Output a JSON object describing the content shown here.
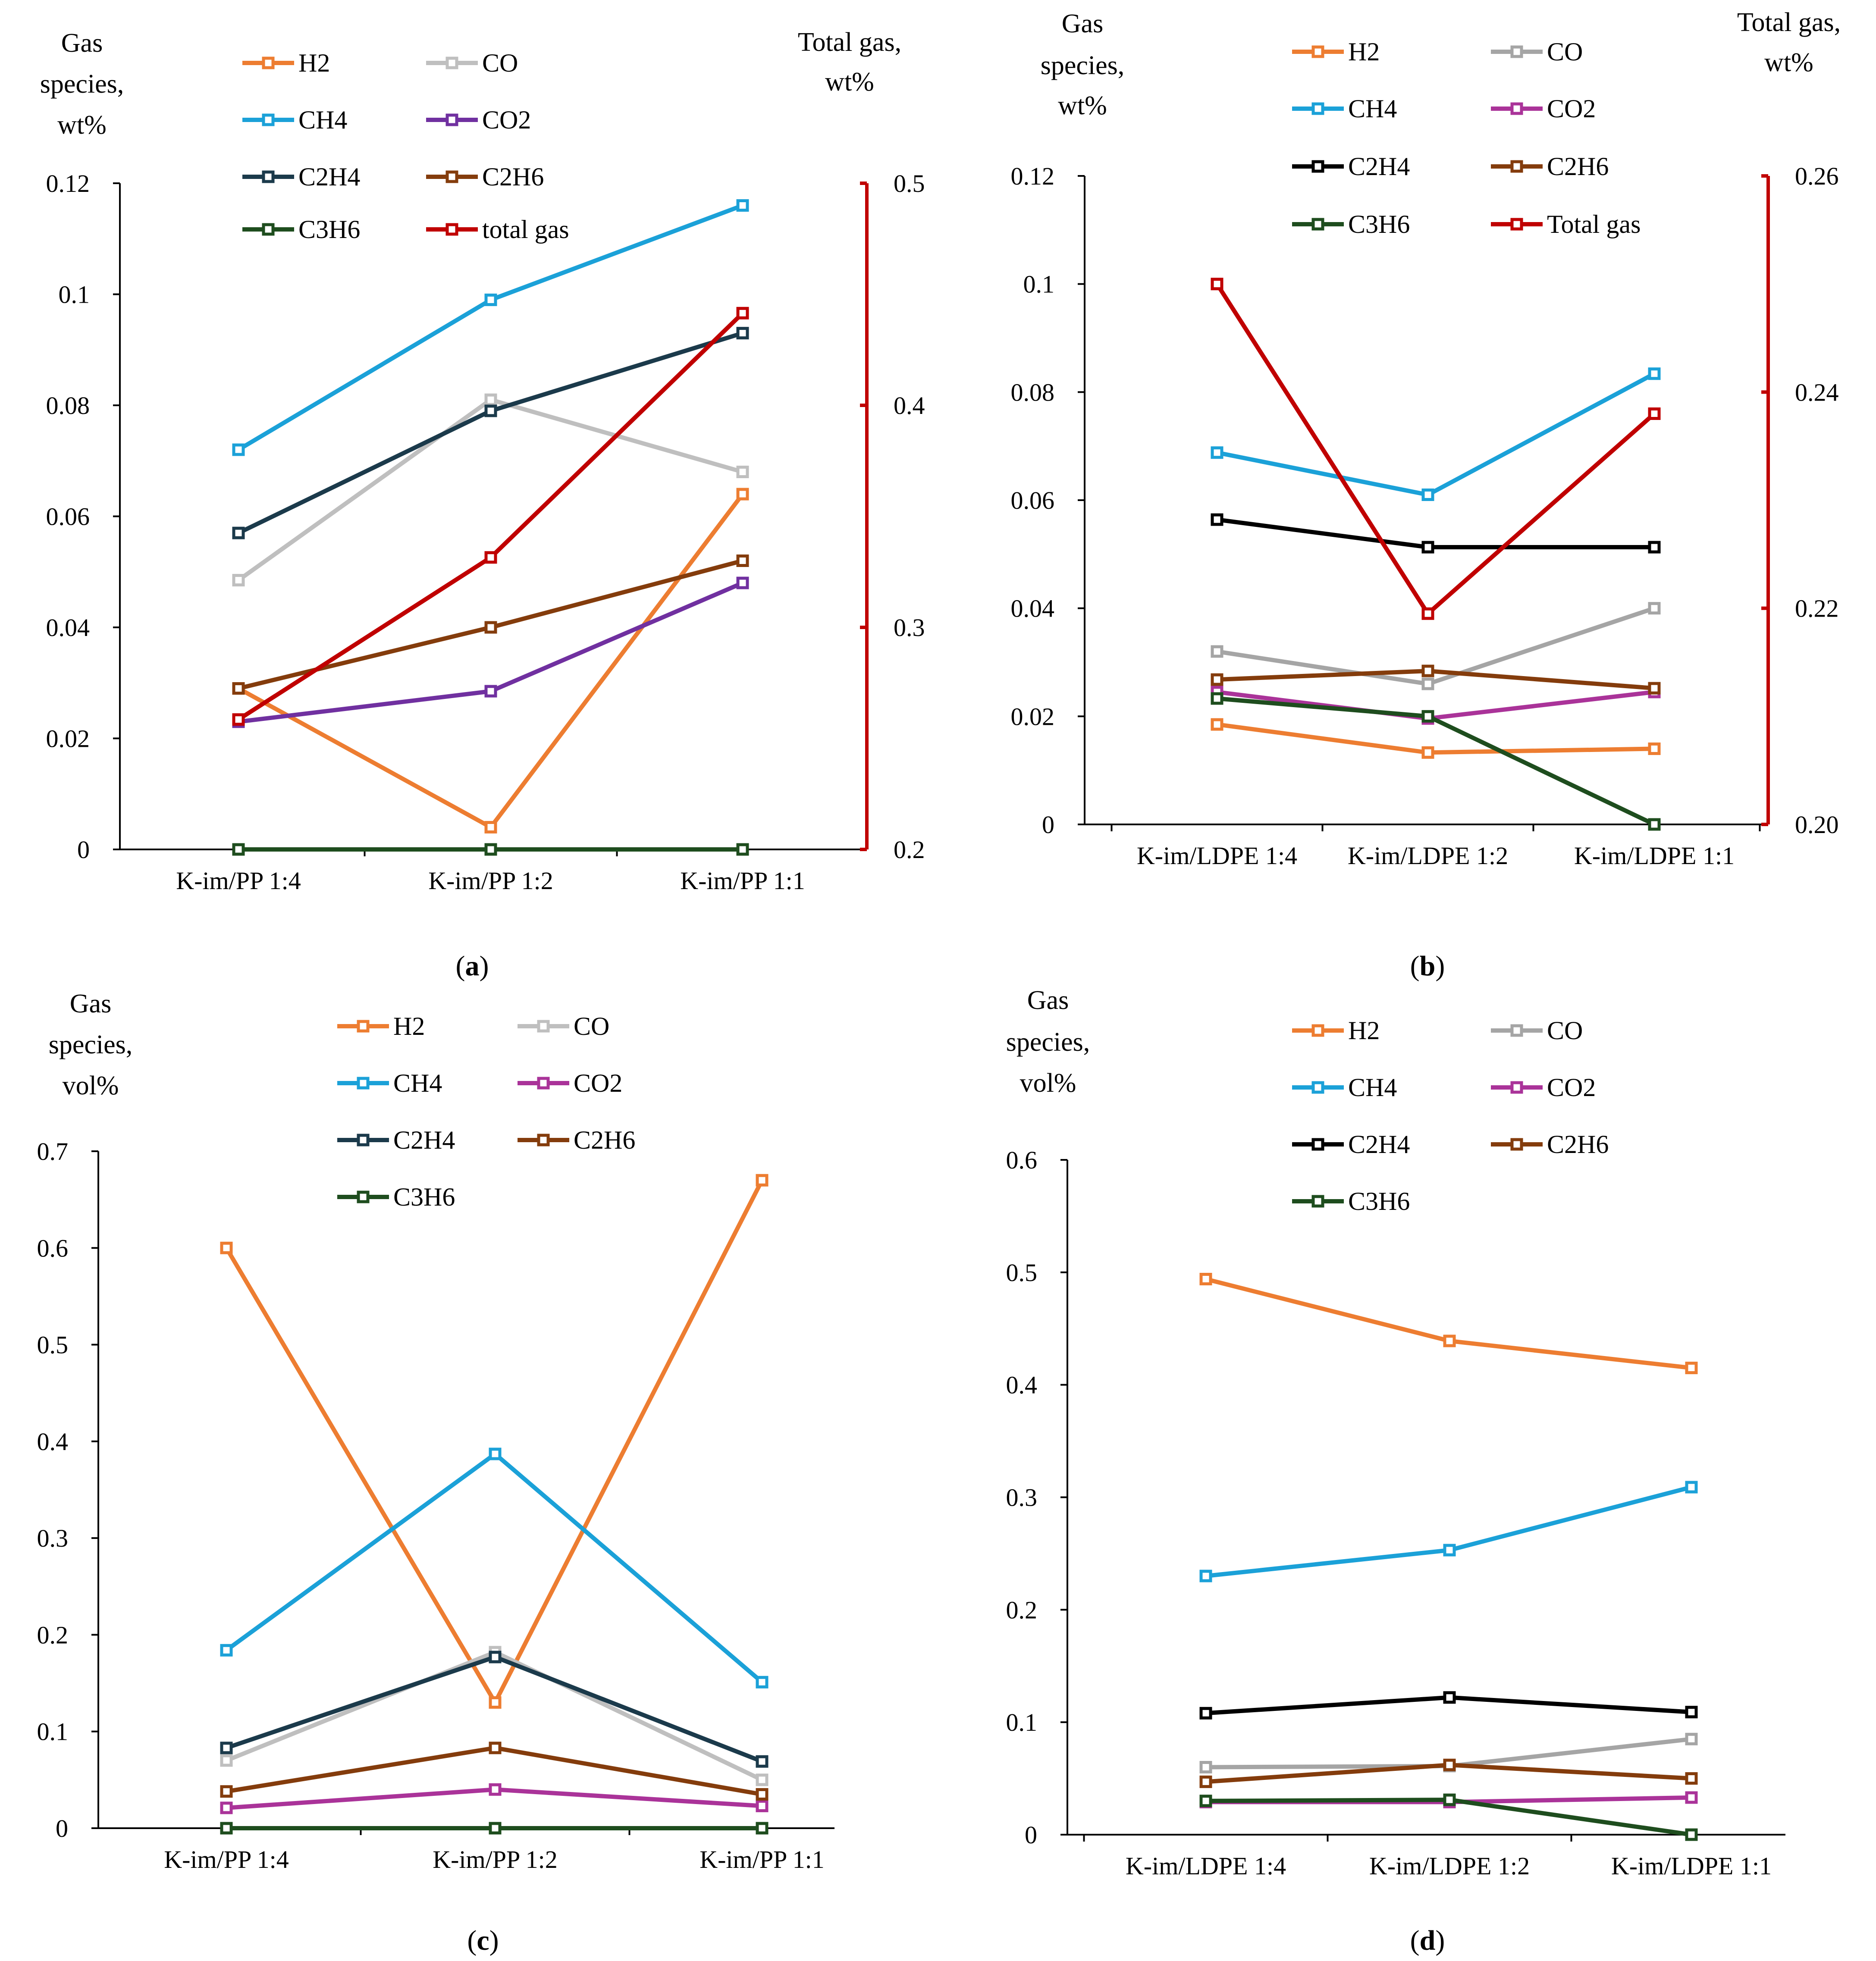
{
  "colors": {
    "H2": "#ED7D31",
    "CO_a": "#BFBFBF",
    "CO_b": "#A5A5A5",
    "CH4": "#1BA1D8",
    "CO2_a": "#7030A0",
    "CO2_b": "#AA3399",
    "C2H4_a": "#1B3A4B",
    "C2H4_b": "#000000",
    "C2H6": "#843C0C",
    "C3H6": "#1E4D1E",
    "total": "#C00000",
    "axis": "#000000"
  },
  "chart_data": [
    {
      "id": "a",
      "type": "line",
      "panel_label": "a",
      "ylabel_lines": [
        "Gas",
        "species,",
        "wt%"
      ],
      "y2label_lines": [
        "Total gas,",
        "wt%"
      ],
      "categories": [
        "K-im/PP 1:4",
        "K-im/PP 1:2",
        "K-im/PP 1:1"
      ],
      "ylim": [
        0,
        0.12
      ],
      "yticks": [
        0,
        0.02,
        0.04,
        0.06,
        0.08,
        0.1,
        0.12
      ],
      "ytick_labels": [
        "0",
        "0.02",
        "0.04",
        "0.06",
        "0.08",
        "0.1",
        "0.12"
      ],
      "y2lim": [
        0.2,
        0.5
      ],
      "y2ticks": [
        0.2,
        0.3,
        0.4,
        0.5
      ],
      "y2tick_labels": [
        "0.2",
        "0.3",
        "0.4",
        "0.5"
      ],
      "series": [
        {
          "name": "H2",
          "color_key": "H2",
          "values": [
            0.029,
            0.004,
            0.064
          ]
        },
        {
          "name": "CO",
          "color_key": "CO_a",
          "values": [
            0.0485,
            0.081,
            0.068
          ]
        },
        {
          "name": "CH4",
          "color_key": "CH4",
          "values": [
            0.072,
            0.099,
            0.116
          ]
        },
        {
          "name": "CO2",
          "color_key": "CO2_a",
          "values": [
            0.023,
            0.0285,
            0.048
          ]
        },
        {
          "name": "C2H4",
          "color_key": "C2H4_a",
          "values": [
            0.057,
            0.079,
            0.093
          ]
        },
        {
          "name": "C2H6",
          "color_key": "C2H6",
          "values": [
            0.029,
            0.04,
            0.052
          ]
        },
        {
          "name": "C3H6",
          "color_key": "C3H6",
          "values": [
            0,
            0,
            0
          ]
        },
        {
          "name": "total gas",
          "color_key": "total",
          "axis": "right",
          "values": [
            0.2585,
            0.3315,
            0.4415
          ]
        }
      ]
    },
    {
      "id": "b",
      "type": "line",
      "panel_label": "b",
      "ylabel_lines": [
        "Gas",
        "species,",
        "wt%"
      ],
      "y2label_lines": [
        "Total gas,",
        "wt%"
      ],
      "categories": [
        "K-im/LDPE 1:4",
        "K-im/LDPE 1:2",
        "K-im/LDPE 1:1"
      ],
      "ylim": [
        0,
        0.12
      ],
      "yticks": [
        0,
        0.02,
        0.04,
        0.06,
        0.08,
        0.1,
        0.12
      ],
      "ytick_labels": [
        "0",
        "0.02",
        "0.04",
        "0.06",
        "0.08",
        "0.1",
        "0.12"
      ],
      "y2lim": [
        0.2,
        0.26
      ],
      "y2ticks": [
        0.2,
        0.22,
        0.24,
        0.26
      ],
      "y2tick_labels": [
        "0.20",
        "0.22",
        "0.24",
        "0.26"
      ],
      "series": [
        {
          "name": "H2",
          "color_key": "H2",
          "values": [
            0.0185,
            0.0133,
            0.014
          ]
        },
        {
          "name": "CO",
          "color_key": "CO_b",
          "values": [
            0.032,
            0.026,
            0.04
          ]
        },
        {
          "name": "CH4",
          "color_key": "CH4",
          "values": [
            0.0688,
            0.061,
            0.0834
          ]
        },
        {
          "name": "CO2",
          "color_key": "CO2_b",
          "values": [
            0.0245,
            0.0196,
            0.0245
          ]
        },
        {
          "name": "C2H4",
          "color_key": "C2H4_b",
          "values": [
            0.0564,
            0.0513,
            0.0513
          ]
        },
        {
          "name": "C2H6",
          "color_key": "C2H6",
          "values": [
            0.0268,
            0.0284,
            0.0252
          ]
        },
        {
          "name": "C3H6",
          "color_key": "C3H6",
          "values": [
            0.0233,
            0.02,
            0
          ]
        },
        {
          "name": "Total gas",
          "color_key": "total",
          "axis": "right",
          "values": [
            0.25,
            0.2195,
            0.238
          ]
        }
      ]
    },
    {
      "id": "c",
      "type": "line",
      "panel_label": "c",
      "ylabel_lines": [
        "Gas",
        "species,",
        "vol%"
      ],
      "categories": [
        "K-im/PP 1:4",
        "K-im/PP 1:2",
        "K-im/PP 1:1"
      ],
      "ylim": [
        0,
        0.7
      ],
      "yticks": [
        0,
        0.1,
        0.2,
        0.3,
        0.4,
        0.5,
        0.6,
        0.7
      ],
      "ytick_labels": [
        "0",
        "0.1",
        "0.2",
        "0.3",
        "0.4",
        "0.5",
        "0.6",
        "0.7"
      ],
      "series": [
        {
          "name": "H2",
          "color_key": "H2",
          "values": [
            0.6,
            0.13,
            0.67
          ]
        },
        {
          "name": "CO",
          "color_key": "CO_a",
          "values": [
            0.07,
            0.182,
            0.05
          ]
        },
        {
          "name": "CH4",
          "color_key": "CH4",
          "values": [
            0.184,
            0.387,
            0.151
          ]
        },
        {
          "name": "CO2",
          "color_key": "CO2_b",
          "values": [
            0.021,
            0.04,
            0.023
          ]
        },
        {
          "name": "C2H4",
          "color_key": "C2H4_a",
          "values": [
            0.083,
            0.177,
            0.069
          ]
        },
        {
          "name": "C2H6",
          "color_key": "C2H6",
          "values": [
            0.038,
            0.083,
            0.035
          ]
        },
        {
          "name": "C3H6",
          "color_key": "C3H6",
          "values": [
            0,
            0,
            0
          ]
        }
      ]
    },
    {
      "id": "d",
      "type": "line",
      "panel_label": "d",
      "ylabel_lines": [
        "Gas",
        "species,",
        "vol%"
      ],
      "categories": [
        "K-im/LDPE 1:4",
        "K-im/LDPE 1:2",
        "K-im/LDPE 1:1"
      ],
      "ylim": [
        0,
        0.6
      ],
      "yticks": [
        0,
        0.1,
        0.2,
        0.3,
        0.4,
        0.5,
        0.6
      ],
      "ytick_labels": [
        "0",
        "0.1",
        "0.2",
        "0.3",
        "0.4",
        "0.5",
        "0.6"
      ],
      "series": [
        {
          "name": "H2",
          "color_key": "H2",
          "values": [
            0.494,
            0.439,
            0.415
          ]
        },
        {
          "name": "CO",
          "color_key": "CO_b",
          "values": [
            0.06,
            0.061,
            0.085
          ]
        },
        {
          "name": "CH4",
          "color_key": "CH4",
          "values": [
            0.23,
            0.253,
            0.309
          ]
        },
        {
          "name": "CO2",
          "color_key": "CO2_b",
          "values": [
            0.029,
            0.029,
            0.033
          ]
        },
        {
          "name": "C2H4",
          "color_key": "C2H4_b",
          "values": [
            0.108,
            0.122,
            0.109
          ]
        },
        {
          "name": "C2H6",
          "color_key": "C2H6",
          "values": [
            0.047,
            0.062,
            0.05
          ]
        },
        {
          "name": "C3H6",
          "color_key": "C3H6",
          "values": [
            0.03,
            0.031,
            0
          ]
        }
      ]
    }
  ]
}
